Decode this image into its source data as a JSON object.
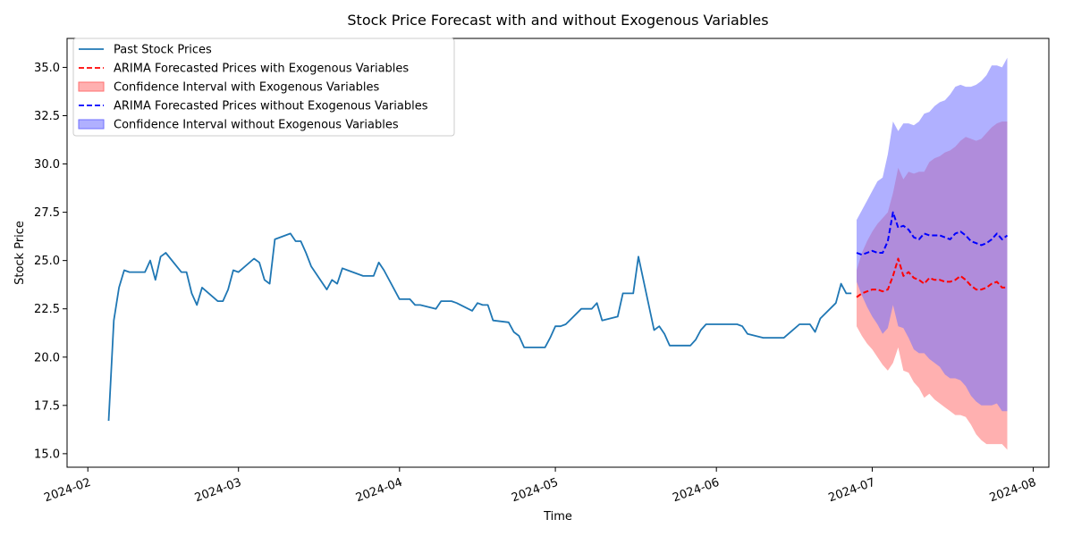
{
  "chart_data": {
    "type": "line",
    "title": "Stock Price Forecast with and without Exogenous Variables",
    "xlabel": "Time",
    "ylabel": "Stock Price",
    "x_ticks": [
      "2024-02",
      "2024-03",
      "2024-04",
      "2024-05",
      "2024-06",
      "2024-07",
      "2024-08"
    ],
    "y_ticks": [
      "15.0",
      "17.5",
      "20.0",
      "22.5",
      "25.0",
      "27.5",
      "30.0",
      "32.5",
      "35.0"
    ],
    "xlim": [
      "2024-01-28",
      "2024-08-04"
    ],
    "ylim": [
      14.3,
      36.5
    ],
    "grid": false,
    "legend_position": "top-left",
    "legend": [
      {
        "label": "Past Stock Prices",
        "kind": "line",
        "color": "#1f77b4"
      },
      {
        "label": "ARIMA Forecasted Prices with Exogenous Variables",
        "kind": "dashed",
        "color": "#ff0000"
      },
      {
        "label": "Confidence Interval with Exogenous Variables",
        "kind": "fill",
        "color": "#ff6f6f"
      },
      {
        "label": "ARIMA Forecasted Prices without Exogenous Variables",
        "kind": "dashed",
        "color": "#0000ff"
      },
      {
        "label": "Confidence Interval without Exogenous Variables",
        "kind": "fill",
        "color": "#6f6fff"
      }
    ],
    "series": [
      {
        "name": "Past Stock Prices",
        "color": "#1f77b4",
        "x": [
          "2024-02-05",
          "2024-02-06",
          "2024-02-07",
          "2024-02-08",
          "2024-02-09",
          "2024-02-12",
          "2024-02-13",
          "2024-02-14",
          "2024-02-15",
          "2024-02-16",
          "2024-02-19",
          "2024-02-20",
          "2024-02-21",
          "2024-02-22",
          "2024-02-23",
          "2024-02-26",
          "2024-02-27",
          "2024-02-28",
          "2024-02-29",
          "2024-03-01",
          "2024-03-04",
          "2024-03-05",
          "2024-03-06",
          "2024-03-07",
          "2024-03-08",
          "2024-03-11",
          "2024-03-12",
          "2024-03-13",
          "2024-03-14",
          "2024-03-15",
          "2024-03-18",
          "2024-03-19",
          "2024-03-20",
          "2024-03-21",
          "2024-03-22",
          "2024-03-25",
          "2024-03-26",
          "2024-03-27",
          "2024-03-28",
          "2024-03-29",
          "2024-04-01",
          "2024-04-02",
          "2024-04-03",
          "2024-04-04",
          "2024-04-05",
          "2024-04-08",
          "2024-04-09",
          "2024-04-10",
          "2024-04-11",
          "2024-04-12",
          "2024-04-15",
          "2024-04-16",
          "2024-04-17",
          "2024-04-18",
          "2024-04-19",
          "2024-04-22",
          "2024-04-23",
          "2024-04-24",
          "2024-04-25",
          "2024-04-26",
          "2024-04-29",
          "2024-04-30",
          "2024-05-01",
          "2024-05-02",
          "2024-05-03",
          "2024-05-06",
          "2024-05-07",
          "2024-05-08",
          "2024-05-09",
          "2024-05-10",
          "2024-05-13",
          "2024-05-14",
          "2024-05-15",
          "2024-05-16",
          "2024-05-17",
          "2024-05-20",
          "2024-05-21",
          "2024-05-22",
          "2024-05-23",
          "2024-05-24",
          "2024-05-27",
          "2024-05-28",
          "2024-05-29",
          "2024-05-30",
          "2024-05-31",
          "2024-06-03",
          "2024-06-04",
          "2024-06-05",
          "2024-06-06",
          "2024-06-07",
          "2024-06-10",
          "2024-06-11",
          "2024-06-12",
          "2024-06-13",
          "2024-06-14",
          "2024-06-17",
          "2024-06-18",
          "2024-06-19",
          "2024-06-20",
          "2024-06-21",
          "2024-06-24",
          "2024-06-25",
          "2024-06-26",
          "2024-06-27"
        ],
        "values": [
          16.7,
          21.9,
          23.6,
          24.5,
          24.4,
          24.4,
          25.0,
          24.0,
          25.2,
          25.4,
          24.4,
          24.4,
          23.3,
          22.7,
          23.6,
          22.9,
          22.9,
          23.5,
          24.5,
          24.4,
          25.1,
          24.9,
          24.0,
          23.8,
          26.1,
          26.4,
          26.0,
          26.0,
          25.4,
          24.7,
          23.5,
          24.0,
          23.8,
          24.6,
          24.5,
          24.2,
          24.2,
          24.2,
          24.9,
          24.5,
          23.0,
          23.0,
          23.0,
          22.7,
          22.7,
          22.5,
          22.9,
          22.9,
          22.9,
          22.8,
          22.4,
          22.8,
          22.7,
          22.7,
          21.9,
          21.8,
          21.3,
          21.1,
          20.5,
          20.5,
          20.5,
          21.0,
          21.6,
          21.6,
          21.7,
          22.5,
          22.5,
          22.5,
          22.8,
          21.9,
          22.1,
          23.3,
          23.3,
          23.3,
          25.2,
          21.4,
          21.6,
          21.2,
          20.6,
          20.6,
          20.6,
          20.9,
          21.4,
          21.7,
          21.7,
          21.7,
          21.7,
          21.7,
          21.6,
          21.2,
          21.0,
          21.0,
          21.0,
          21.0,
          21.0,
          21.7,
          21.7,
          21.7,
          21.3,
          22.0,
          22.8,
          23.8,
          23.3,
          23.3
        ]
      },
      {
        "name": "ARIMA Forecasted Prices with Exogenous Variables",
        "color": "#ff0000",
        "x": [
          "2024-06-28",
          "2024-06-29",
          "2024-06-30",
          "2024-07-01",
          "2024-07-02",
          "2024-07-03",
          "2024-07-04",
          "2024-07-05",
          "2024-07-06",
          "2024-07-07",
          "2024-07-08",
          "2024-07-09",
          "2024-07-10",
          "2024-07-11",
          "2024-07-12",
          "2024-07-13",
          "2024-07-14",
          "2024-07-15",
          "2024-07-16",
          "2024-07-17",
          "2024-07-18",
          "2024-07-19",
          "2024-07-20",
          "2024-07-21",
          "2024-07-22",
          "2024-07-23",
          "2024-07-24",
          "2024-07-25",
          "2024-07-26",
          "2024-07-27"
        ],
        "values": [
          23.1,
          23.3,
          23.4,
          23.5,
          23.5,
          23.4,
          23.5,
          24.2,
          25.1,
          24.2,
          24.4,
          24.1,
          24.0,
          23.8,
          24.1,
          24.0,
          24.0,
          23.9,
          23.9,
          24.0,
          24.2,
          24.0,
          23.7,
          23.5,
          23.5,
          23.6,
          23.8,
          23.9,
          23.6,
          23.6
        ]
      },
      {
        "name": "Confidence Interval with Exogenous Variables",
        "color": "#ff6f6f",
        "x": [
          "2024-06-28",
          "2024-06-29",
          "2024-06-30",
          "2024-07-01",
          "2024-07-02",
          "2024-07-03",
          "2024-07-04",
          "2024-07-05",
          "2024-07-06",
          "2024-07-07",
          "2024-07-08",
          "2024-07-09",
          "2024-07-10",
          "2024-07-11",
          "2024-07-12",
          "2024-07-13",
          "2024-07-14",
          "2024-07-15",
          "2024-07-16",
          "2024-07-17",
          "2024-07-18",
          "2024-07-19",
          "2024-07-20",
          "2024-07-21",
          "2024-07-22",
          "2024-07-23",
          "2024-07-24",
          "2024-07-25",
          "2024-07-26",
          "2024-07-27"
        ],
        "lower": [
          21.6,
          21.1,
          20.7,
          20.4,
          20.0,
          19.6,
          19.3,
          19.7,
          20.5,
          19.3,
          19.2,
          18.7,
          18.4,
          17.9,
          18.1,
          17.8,
          17.6,
          17.4,
          17.2,
          17.0,
          17.0,
          16.9,
          16.5,
          16.0,
          15.7,
          15.5,
          15.5,
          15.5,
          15.5,
          15.2
        ],
        "upper": [
          24.5,
          25.4,
          26.0,
          26.5,
          26.9,
          27.2,
          27.5,
          28.5,
          29.8,
          29.2,
          29.6,
          29.5,
          29.6,
          29.6,
          30.1,
          30.3,
          30.4,
          30.6,
          30.7,
          30.9,
          31.2,
          31.4,
          31.3,
          31.2,
          31.3,
          31.6,
          31.9,
          32.1,
          32.2,
          32.2
        ]
      },
      {
        "name": "ARIMA Forecasted Prices without Exogenous Variables",
        "color": "#0000ff",
        "x": [
          "2024-06-28",
          "2024-06-29",
          "2024-06-30",
          "2024-07-01",
          "2024-07-02",
          "2024-07-03",
          "2024-07-04",
          "2024-07-05",
          "2024-07-06",
          "2024-07-07",
          "2024-07-08",
          "2024-07-09",
          "2024-07-10",
          "2024-07-11",
          "2024-07-12",
          "2024-07-13",
          "2024-07-14",
          "2024-07-15",
          "2024-07-16",
          "2024-07-17",
          "2024-07-18",
          "2024-07-19",
          "2024-07-20",
          "2024-07-21",
          "2024-07-22",
          "2024-07-23",
          "2024-07-24",
          "2024-07-25",
          "2024-07-26",
          "2024-07-27"
        ],
        "values": [
          25.4,
          25.3,
          25.4,
          25.5,
          25.4,
          25.4,
          26.0,
          27.5,
          26.7,
          26.8,
          26.6,
          26.2,
          26.1,
          26.4,
          26.3,
          26.3,
          26.3,
          26.2,
          26.1,
          26.4,
          26.5,
          26.3,
          26.0,
          25.9,
          25.8,
          25.9,
          26.1,
          26.4,
          26.1,
          26.3
        ]
      },
      {
        "name": "Confidence Interval without Exogenous Variables",
        "color": "#6f6fff",
        "x": [
          "2024-06-28",
          "2024-06-29",
          "2024-06-30",
          "2024-07-01",
          "2024-07-02",
          "2024-07-03",
          "2024-07-04",
          "2024-07-05",
          "2024-07-06",
          "2024-07-07",
          "2024-07-08",
          "2024-07-09",
          "2024-07-10",
          "2024-07-11",
          "2024-07-12",
          "2024-07-13",
          "2024-07-14",
          "2024-07-15",
          "2024-07-16",
          "2024-07-17",
          "2024-07-18",
          "2024-07-19",
          "2024-07-20",
          "2024-07-21",
          "2024-07-22",
          "2024-07-23",
          "2024-07-24",
          "2024-07-25",
          "2024-07-26",
          "2024-07-27"
        ],
        "lower": [
          23.9,
          23.2,
          22.6,
          22.1,
          21.7,
          21.2,
          21.5,
          22.7,
          21.6,
          21.5,
          21.0,
          20.4,
          20.2,
          20.2,
          19.9,
          19.7,
          19.5,
          19.1,
          18.9,
          18.9,
          18.8,
          18.5,
          18.0,
          17.7,
          17.5,
          17.5,
          17.5,
          17.6,
          17.2,
          17.2
        ],
        "upper": [
          27.1,
          27.6,
          28.1,
          28.6,
          29.1,
          29.3,
          30.5,
          32.2,
          31.7,
          32.1,
          32.1,
          32.0,
          32.2,
          32.6,
          32.7,
          33.0,
          33.2,
          33.3,
          33.6,
          34.0,
          34.1,
          34.0,
          34.0,
          34.1,
          34.3,
          34.6,
          35.1,
          35.1,
          35.0,
          35.5
        ]
      }
    ]
  }
}
